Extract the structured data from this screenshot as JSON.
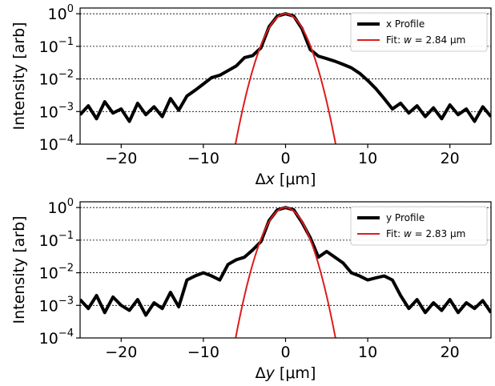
{
  "chart_data": [
    {
      "type": "line",
      "xlabel_prefix": "Δ",
      "xlabel_var": "x",
      "xlabel_unit": " [μm]",
      "ylabel": "Intensity [arb]",
      "xlim": [
        -25,
        25
      ],
      "ylim": [
        0.0001,
        1.5
      ],
      "yscale": "log",
      "grid": "horizontal-dotted",
      "legend_placement": "top-right",
      "xticks": [
        -20,
        -10,
        0,
        10,
        20
      ],
      "xtick_labels": [
        "−20",
        "−10",
        "0",
        "10",
        "20"
      ],
      "yticks": [
        1,
        0.1,
        0.01,
        0.001,
        0.0001
      ],
      "ytick_exponents": [
        "0",
        "−1",
        "−2",
        "−3",
        "−4"
      ],
      "ytick_base": "10",
      "series": [
        {
          "name": "x Profile",
          "color": "#000000",
          "x": [
            -25,
            -24,
            -23,
            -22,
            -21,
            -20,
            -19,
            -18,
            -17,
            -16,
            -15,
            -14,
            -13,
            -12,
            -11,
            -10,
            -9,
            -8,
            -7,
            -6,
            -5,
            -4,
            -3,
            -2,
            -1,
            0,
            1,
            2,
            3,
            4,
            5,
            6,
            7,
            8,
            9,
            10,
            11,
            12,
            13,
            14,
            15,
            16,
            17,
            18,
            19,
            20,
            21,
            22,
            23,
            24,
            25
          ],
          "y": [
            0.0008,
            0.0015,
            0.0006,
            0.002,
            0.0009,
            0.0012,
            0.0005,
            0.0018,
            0.0008,
            0.0014,
            0.0007,
            0.0025,
            0.0011,
            0.003,
            0.0045,
            0.007,
            0.011,
            0.013,
            0.018,
            0.025,
            0.045,
            0.052,
            0.09,
            0.4,
            0.85,
            1.0,
            0.85,
            0.35,
            0.08,
            0.05,
            0.042,
            0.035,
            0.028,
            0.022,
            0.015,
            0.009,
            0.005,
            0.0025,
            0.0012,
            0.0018,
            0.0009,
            0.0015,
            0.0007,
            0.0013,
            0.0006,
            0.0016,
            0.0008,
            0.0012,
            0.0005,
            0.0014,
            0.0007
          ]
        },
        {
          "name": "Fit: w = 2.84 μm",
          "legend_prefix": "Fit: ",
          "legend_var": "w",
          "legend_value": " = 2.84 μm",
          "color": "#dd1c1c",
          "fit_w": 2.84
        }
      ]
    },
    {
      "type": "line",
      "xlabel_prefix": "Δ",
      "xlabel_var": "y",
      "xlabel_unit": " [μm]",
      "ylabel": "Intensity [arb]",
      "xlim": [
        -25,
        25
      ],
      "ylim": [
        0.0001,
        1.5
      ],
      "yscale": "log",
      "grid": "horizontal-dotted",
      "legend_placement": "top-right",
      "xticks": [
        -20,
        -10,
        0,
        10,
        20
      ],
      "xtick_labels": [
        "−20",
        "−10",
        "0",
        "10",
        "20"
      ],
      "yticks": [
        1,
        0.1,
        0.01,
        0.001,
        0.0001
      ],
      "ytick_exponents": [
        "0",
        "−1",
        "−2",
        "−3",
        "−4"
      ],
      "ytick_base": "10",
      "series": [
        {
          "name": "y Profile",
          "color": "#000000",
          "x": [
            -25,
            -24,
            -23,
            -22,
            -21,
            -20,
            -19,
            -18,
            -17,
            -16,
            -15,
            -14,
            -13,
            -12,
            -11,
            -10,
            -9,
            -8,
            -7,
            -6,
            -5,
            -4,
            -3,
            -2,
            -1,
            0,
            1,
            2,
            3,
            4,
            5,
            6,
            7,
            8,
            9,
            10,
            11,
            12,
            13,
            14,
            15,
            16,
            17,
            18,
            19,
            20,
            21,
            22,
            23,
            24,
            25
          ],
          "y": [
            0.0015,
            0.0008,
            0.002,
            0.0006,
            0.0018,
            0.001,
            0.0007,
            0.0015,
            0.0005,
            0.0012,
            0.0008,
            0.0025,
            0.0009,
            0.006,
            0.008,
            0.01,
            0.008,
            0.006,
            0.018,
            0.025,
            0.03,
            0.05,
            0.09,
            0.4,
            0.85,
            1.0,
            0.85,
            0.35,
            0.12,
            0.03,
            0.045,
            0.03,
            0.02,
            0.01,
            0.008,
            0.006,
            0.007,
            0.008,
            0.006,
            0.002,
            0.0008,
            0.0015,
            0.0006,
            0.0012,
            0.0007,
            0.0015,
            0.0006,
            0.0012,
            0.0008,
            0.0014,
            0.0006
          ]
        },
        {
          "name": "Fit: w = 2.83 μm",
          "legend_prefix": "Fit: ",
          "legend_var": "w",
          "legend_value": " = 2.83 μm",
          "color": "#dd1c1c",
          "fit_w": 2.83
        }
      ]
    }
  ]
}
